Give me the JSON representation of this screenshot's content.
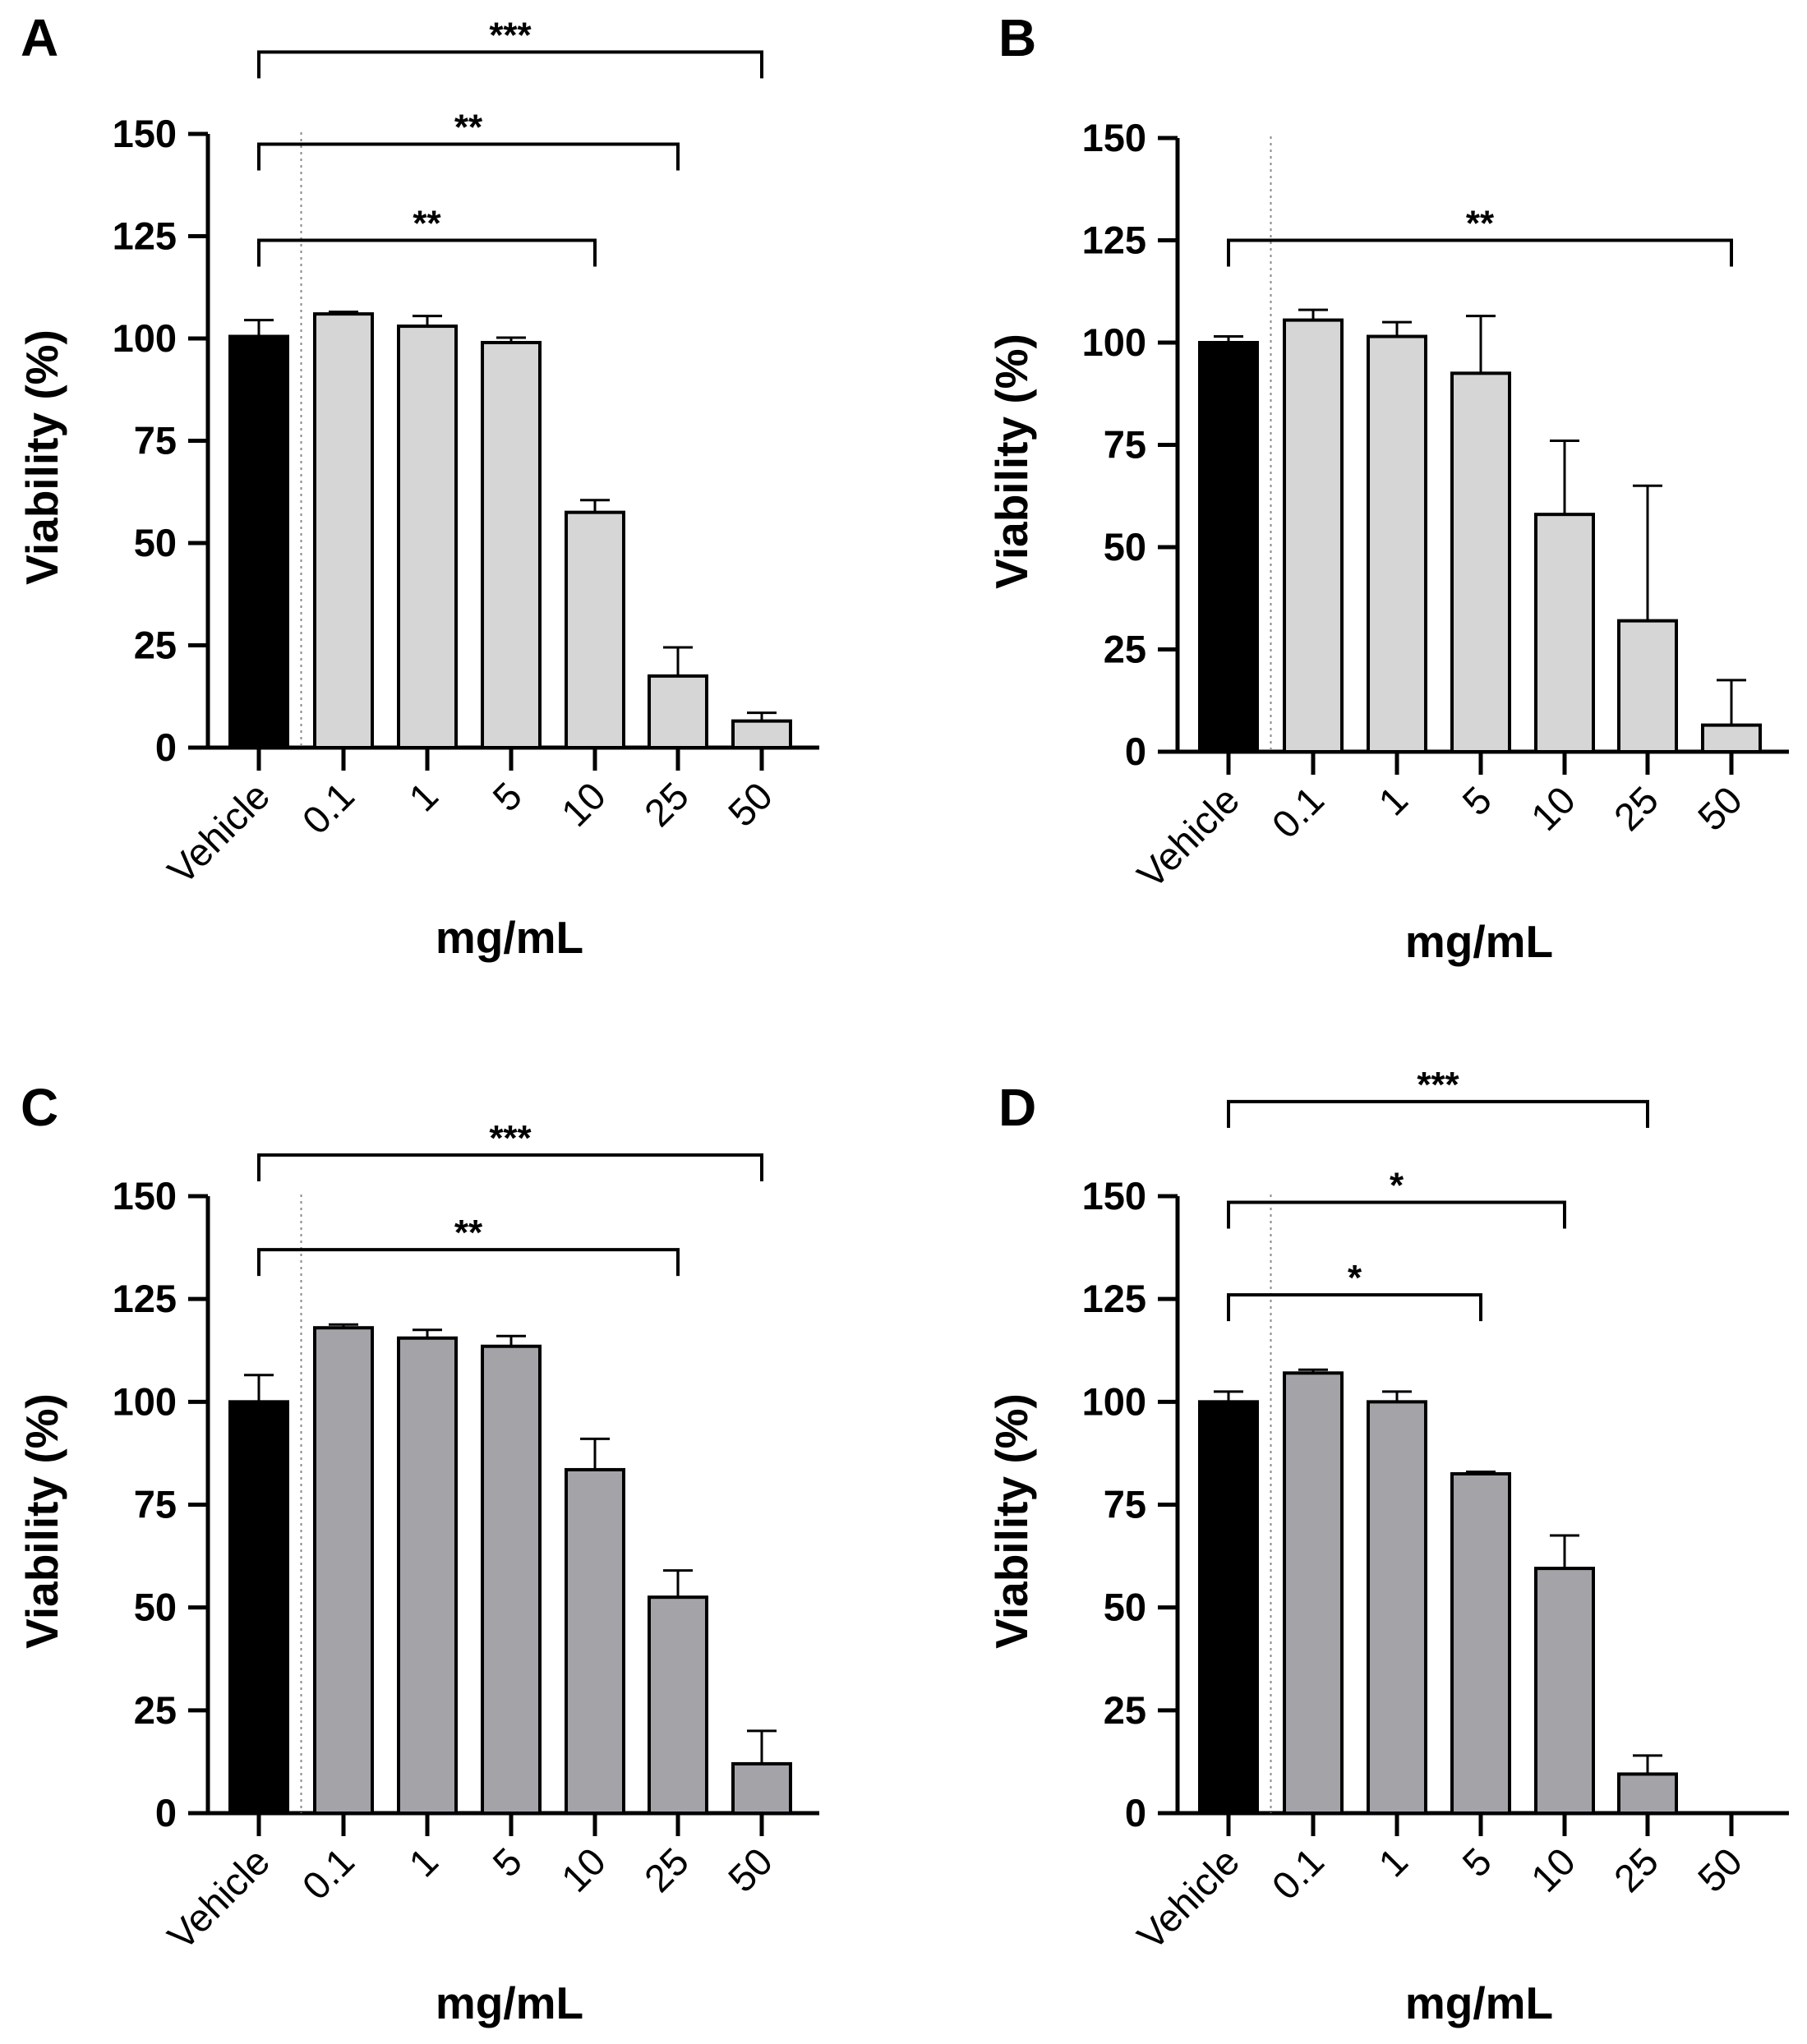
{
  "chart_data": [
    {
      "panel": "A",
      "type": "bar",
      "categories": [
        "Vehicle",
        "0.1",
        "1",
        "5",
        "10",
        "25",
        "50"
      ],
      "values": [
        100.5,
        106,
        103,
        99,
        57.5,
        17.5,
        6.5
      ],
      "errors": [
        4,
        0.5,
        2.5,
        1.2,
        3,
        7,
        2
      ],
      "bar_colors": [
        "#000000",
        "#d6d6d6",
        "#d6d6d6",
        "#d6d6d6",
        "#d6d6d6",
        "#d6d6d6",
        "#d6d6d6"
      ],
      "ylabel": "Viability (%)",
      "xlabel": "mg/mL",
      "yticks": [
        "0",
        "25",
        "50",
        "75",
        "100",
        "125",
        "150"
      ],
      "ylim": [
        0,
        150
      ],
      "significance": [
        {
          "from": "Vehicle",
          "to": "10",
          "label": "**",
          "y": 124
        },
        {
          "from": "Vehicle",
          "to": "25",
          "label": "**",
          "y": 147.5
        },
        {
          "from": "Vehicle",
          "to": "50",
          "label": "***",
          "y": 170
        }
      ]
    },
    {
      "panel": "B",
      "type": "bar",
      "categories": [
        "Vehicle",
        "0.1",
        "1",
        "5",
        "10",
        "25",
        "50"
      ],
      "values": [
        100,
        105.5,
        101.5,
        92.5,
        58,
        32,
        6.5
      ],
      "errors": [
        1.5,
        2.5,
        3.5,
        14,
        18,
        33,
        11
      ],
      "bar_colors": [
        "#000000",
        "#d6d6d6",
        "#d6d6d6",
        "#d6d6d6",
        "#d6d6d6",
        "#d6d6d6",
        "#d6d6d6"
      ],
      "ylabel": "Viability (%)",
      "xlabel": "mg/mL",
      "yticks": [
        "0",
        "25",
        "50",
        "75",
        "100",
        "125",
        "150"
      ],
      "ylim": [
        0,
        150
      ],
      "significance": [
        {
          "from": "Vehicle",
          "to": "50",
          "label": "**",
          "y": 125
        }
      ]
    },
    {
      "panel": "C",
      "type": "bar",
      "categories": [
        "Vehicle",
        "0.1",
        "1",
        "5",
        "10",
        "25",
        "50"
      ],
      "values": [
        100,
        118,
        115.5,
        113.5,
        83.5,
        52.5,
        12
      ],
      "errors": [
        6.5,
        0.8,
        2,
        2.5,
        7.5,
        6.5,
        8
      ],
      "bar_colors": [
        "#000000",
        "#a3a3a8",
        "#a3a3a8",
        "#a3a3a8",
        "#a3a3a8",
        "#a3a3a8",
        "#a3a3a8"
      ],
      "ylabel": "Viability (%)",
      "xlabel": "mg/mL",
      "yticks": [
        "0",
        "25",
        "50",
        "75",
        "100",
        "125",
        "150"
      ],
      "ylim": [
        0,
        150
      ],
      "significance": [
        {
          "from": "Vehicle",
          "to": "25",
          "label": "**",
          "y": 137
        },
        {
          "from": "Vehicle",
          "to": "50",
          "label": "***",
          "y": 160
        }
      ]
    },
    {
      "panel": "D",
      "type": "bar",
      "categories": [
        "Vehicle",
        "0.1",
        "1",
        "5",
        "10",
        "25",
        "50"
      ],
      "values": [
        100,
        107,
        100,
        82.5,
        59.5,
        9.5,
        0
      ],
      "errors": [
        2.5,
        0.8,
        2.5,
        0.5,
        8,
        4.5,
        0
      ],
      "bar_colors": [
        "#000000",
        "#a3a3a8",
        "#a3a3a8",
        "#a3a3a8",
        "#a3a3a8",
        "#a3a3a8",
        "#a3a3a8"
      ],
      "ylabel": "Viability (%)",
      "xlabel": "mg/mL",
      "yticks": [
        "0",
        "25",
        "50",
        "75",
        "100",
        "125",
        "150"
      ],
      "ylim": [
        0,
        150
      ],
      "significance": [
        {
          "from": "Vehicle",
          "to": "5",
          "label": "*",
          "y": 126
        },
        {
          "from": "Vehicle",
          "to": "10",
          "label": "*",
          "y": 148.5
        },
        {
          "from": "Vehicle",
          "to": "25",
          "label": "***",
          "y": 173
        }
      ]
    }
  ]
}
